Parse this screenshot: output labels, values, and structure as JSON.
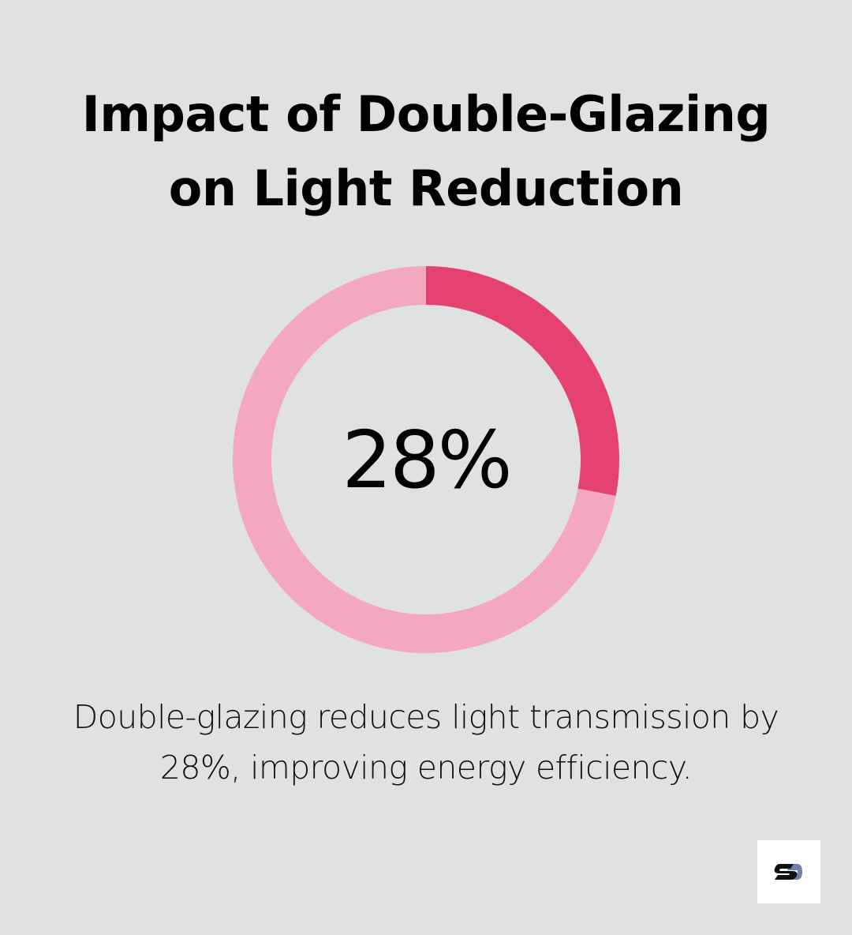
{
  "title": {
    "line1": "Impact of Double-Glazing",
    "line2": "on Light Reduction"
  },
  "chart_data": {
    "type": "pie",
    "variant": "donut",
    "values": [
      28,
      72
    ],
    "center_label": "28%",
    "colors": {
      "highlight": "#e5426f",
      "remainder": "#f3a8bf"
    }
  },
  "caption": {
    "line1": "Double-glazing reduces light transmission by",
    "line2": "28%, improving energy efficiency."
  },
  "logo": {
    "icon": "s-logo-icon",
    "colors": {
      "dark": "#111111",
      "accent": "#6d7fae"
    }
  },
  "colors": {
    "background": "#e0e2e1"
  }
}
